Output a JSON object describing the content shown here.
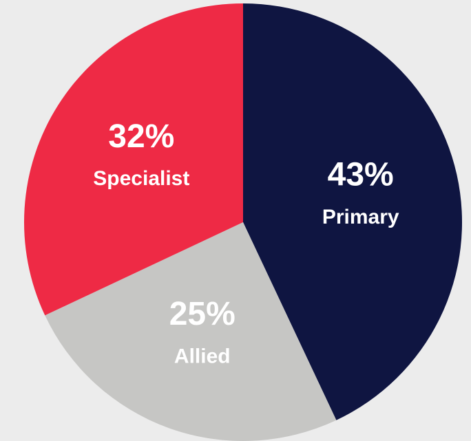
{
  "chart_data": {
    "type": "pie",
    "categories": [
      "Primary",
      "Allied",
      "Specialist"
    ],
    "values": [
      43,
      25,
      32
    ],
    "value_labels": [
      "43%",
      "25%",
      "32%"
    ],
    "colors": [
      "#0f1541",
      "#c6c6c4",
      "#ee2a45"
    ]
  }
}
